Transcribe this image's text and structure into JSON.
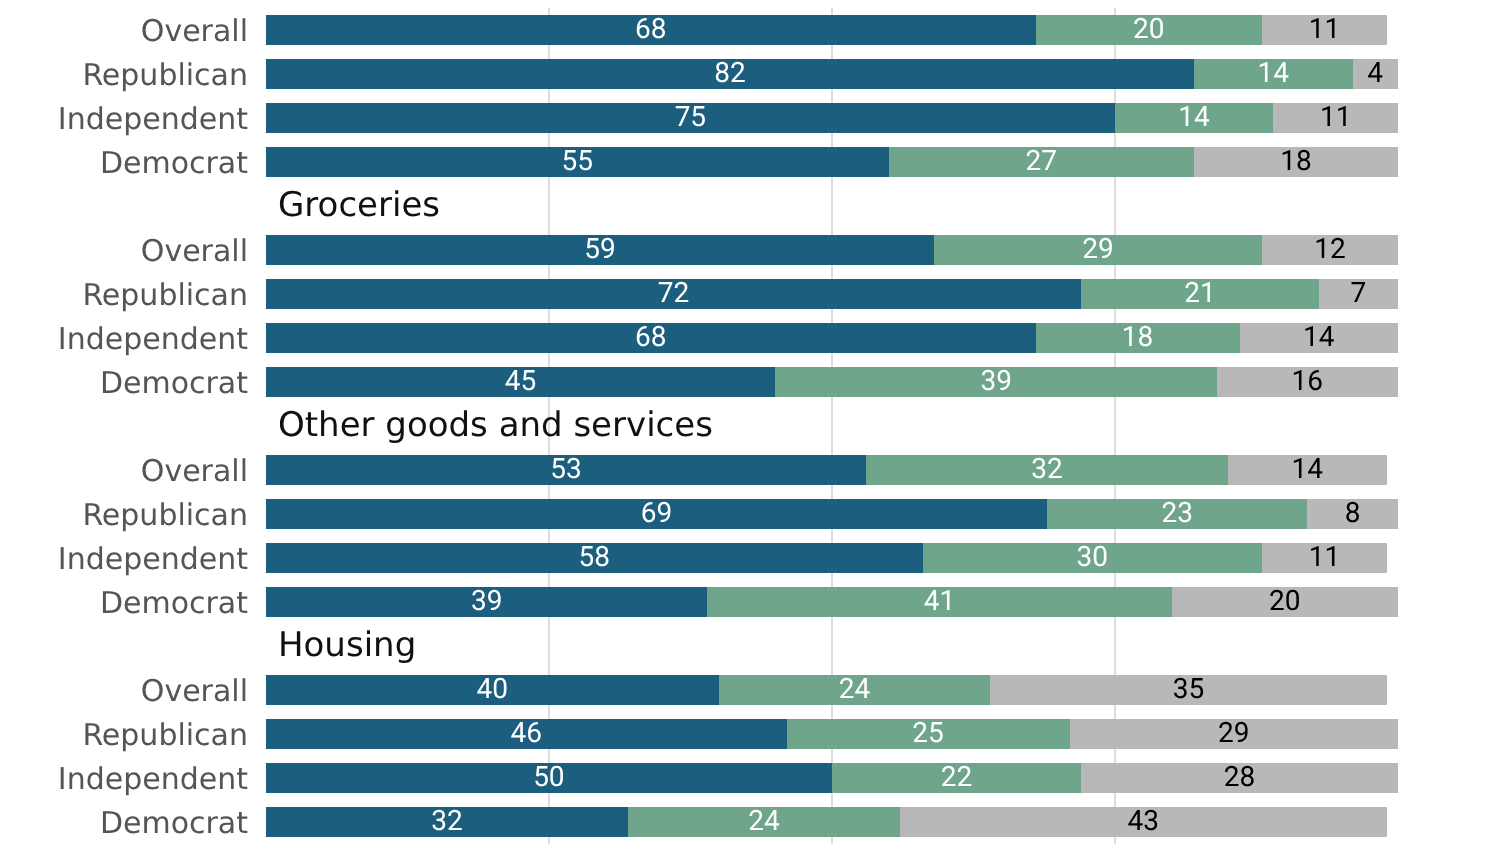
{
  "chart_data": {
    "type": "bar",
    "orientation": "horizontal",
    "stacked": true,
    "data_labels": true,
    "grid": "x",
    "categories": [
      "Overall",
      "Republican",
      "Independent",
      "Democrat",
      null,
      "Overall",
      "Republican",
      "Independent",
      "Democrat",
      null,
      "Overall",
      "Republican",
      "Independent",
      "Democrat",
      null,
      "Overall",
      "Republican",
      "Independent",
      "Democrat"
    ],
    "annotations": [
      "Groceries",
      "Other goods and services",
      "Housing"
    ],
    "xlim": [
      0,
      100
    ],
    "xticks": [
      {
        "value": 25,
        "label": null
      },
      {
        "value": 50,
        "label": null
      },
      {
        "value": 75,
        "label": null
      }
    ],
    "tick_labels": "y",
    "series": [
      {
        "color": "#1b5e7e",
        "values": [
          68,
          82,
          75,
          55,
          null,
          59,
          72,
          68,
          45,
          null,
          53,
          69,
          58,
          39,
          null,
          40,
          46,
          50,
          32
        ]
      },
      {
        "color": "#6fa58a",
        "values": [
          20,
          14,
          14,
          27,
          null,
          29,
          21,
          18,
          39,
          null,
          32,
          23,
          30,
          41,
          null,
          24,
          25,
          22,
          24
        ]
      },
      {
        "color": "#b8b8b8",
        "values": [
          11,
          4,
          11,
          18,
          null,
          12,
          7,
          14,
          16,
          null,
          14,
          8,
          11,
          20,
          null,
          35,
          29,
          28,
          43
        ]
      }
    ]
  }
}
